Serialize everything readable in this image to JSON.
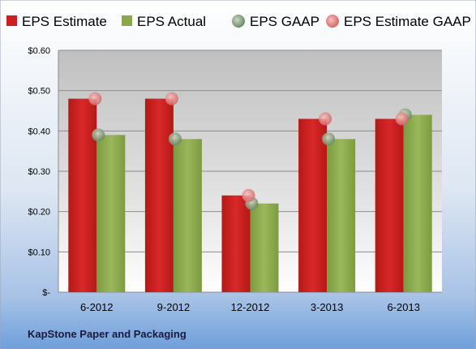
{
  "chart_data": {
    "type": "bar",
    "categories": [
      "6-2012",
      "9-2012",
      "12-2012",
      "3-2013",
      "6-2013"
    ],
    "series": [
      {
        "name": "EPS Estimate",
        "kind": "bar",
        "color": "#cc2020",
        "values": [
          0.48,
          0.48,
          0.24,
          0.43,
          0.43
        ]
      },
      {
        "name": "EPS Actual",
        "kind": "bar",
        "color": "#8aa84a",
        "values": [
          0.39,
          0.38,
          0.22,
          0.38,
          0.44
        ]
      },
      {
        "name": "EPS GAAP",
        "kind": "marker",
        "color": "#8aa878",
        "values": [
          0.39,
          0.38,
          0.22,
          0.38,
          0.44
        ]
      },
      {
        "name": "EPS Estimate GAAP",
        "kind": "marker",
        "color": "#e88888",
        "values": [
          0.48,
          0.48,
          0.24,
          0.43,
          0.43
        ]
      }
    ],
    "ylim": [
      0,
      0.6
    ],
    "yticks": [
      0,
      0.1,
      0.2,
      0.3,
      0.4,
      0.5,
      0.6
    ],
    "ytick_labels": [
      "$-",
      "$0.10",
      "$0.20",
      "$0.30",
      "$0.40",
      "$0.50",
      "$0.60"
    ],
    "grid": true,
    "legend_position": "top",
    "footer": "KapStone Paper and Packaging"
  }
}
